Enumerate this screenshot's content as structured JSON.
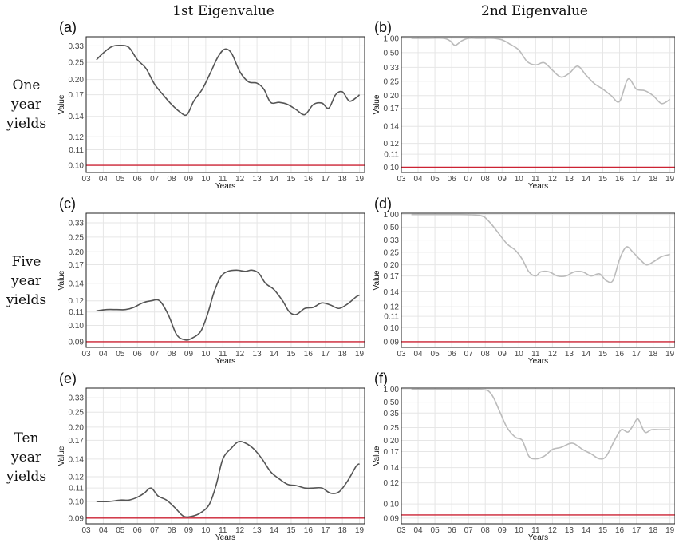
{
  "column_titles": [
    "1st Eigenvalue",
    "2nd Eigenvalue"
  ],
  "row_labels": [
    [
      "One",
      "year",
      "yields"
    ],
    [
      "Five",
      "year",
      "yields"
    ],
    [
      "Ten",
      "year",
      "yields"
    ]
  ],
  "colors": {
    "first": "#555555",
    "second": "#bbbbbb",
    "threshold": "#cc2233",
    "grid": "#e6e6e6",
    "frame": "#222222"
  },
  "chart_data": [
    {
      "id": "a",
      "type": "line",
      "panel_label": "(a)",
      "xlabel": "Years",
      "ylabel": "Value",
      "y_scale": "reciprocal",
      "xlim": [
        2003,
        2019.3
      ],
      "x_ticks": [
        "03",
        "04",
        "05",
        "06",
        "07",
        "08",
        "09",
        "10",
        "11",
        "12",
        "13",
        "14",
        "15",
        "16",
        "17",
        "18",
        "19"
      ],
      "y_ticks": [
        0.1,
        0.11,
        0.12,
        0.14,
        0.17,
        0.2,
        0.25,
        0.33
      ],
      "y_tick_labels": [
        "0.10",
        "0.11",
        "0.12",
        "0.14",
        "0.17",
        "0.20",
        "0.25",
        "0.33"
      ],
      "ylim": [
        0.096,
        0.4
      ],
      "threshold": 0.1,
      "color_key": "first",
      "x": [
        2003.6,
        2004.0,
        2004.5,
        2005.0,
        2005.5,
        2006.0,
        2006.5,
        2007.0,
        2007.5,
        2008.0,
        2008.5,
        2008.9,
        2009.3,
        2009.8,
        2010.3,
        2010.7,
        2011.1,
        2011.5,
        2012.0,
        2012.5,
        2013.0,
        2013.4,
        2013.8,
        2014.3,
        2014.8,
        2015.3,
        2015.8,
        2016.3,
        2016.8,
        2017.2,
        2017.6,
        2018.0,
        2018.4,
        2018.8,
        2019.0
      ],
      "y": [
        0.26,
        0.29,
        0.325,
        0.333,
        0.32,
        0.26,
        0.23,
        0.19,
        0.17,
        0.155,
        0.145,
        0.142,
        0.16,
        0.18,
        0.22,
        0.27,
        0.31,
        0.29,
        0.22,
        0.195,
        0.192,
        0.18,
        0.158,
        0.158,
        0.155,
        0.148,
        0.142,
        0.155,
        0.157,
        0.15,
        0.17,
        0.175,
        0.16,
        0.165,
        0.17
      ]
    },
    {
      "id": "b",
      "type": "line",
      "panel_label": "(b)",
      "xlabel": "Years",
      "ylabel": "Value",
      "y_scale": "reciprocal",
      "xlim": [
        2003,
        2019.3
      ],
      "x_ticks": [
        "03",
        "04",
        "05",
        "06",
        "07",
        "08",
        "09",
        "10",
        "11",
        "12",
        "13",
        "14",
        "15",
        "16",
        "17",
        "18",
        "19"
      ],
      "y_ticks": [
        0.1,
        0.11,
        0.12,
        0.14,
        0.17,
        0.2,
        0.25,
        0.33,
        0.5,
        1.0
      ],
      "y_tick_labels": [
        "0.10",
        "0.11",
        "0.12",
        "0.14",
        "0.17",
        "0.20",
        "0.25",
        "0.33",
        "0.50",
        "1.00"
      ],
      "ylim": [
        0.0965,
        1.12
      ],
      "threshold": 0.1,
      "color_key": "second",
      "x": [
        2003.6,
        2004.5,
        2005.5,
        2005.9,
        2006.2,
        2006.6,
        2007.0,
        2007.5,
        2008.0,
        2008.5,
        2009.0,
        2009.5,
        2010.0,
        2010.5,
        2011.0,
        2011.5,
        2012.0,
        2012.5,
        2013.0,
        2013.5,
        2014.0,
        2014.5,
        2015.0,
        2015.5,
        2016.0,
        2016.5,
        2017.0,
        2017.5,
        2018.0,
        2018.5,
        2019.0
      ],
      "y": [
        1.0,
        1.0,
        1.0,
        0.85,
        0.67,
        0.85,
        1.0,
        1.0,
        1.0,
        1.0,
        0.9,
        0.7,
        0.55,
        0.38,
        0.35,
        0.37,
        0.31,
        0.27,
        0.29,
        0.34,
        0.28,
        0.24,
        0.22,
        0.2,
        0.185,
        0.26,
        0.22,
        0.215,
        0.2,
        0.18,
        0.19
      ]
    },
    {
      "id": "c",
      "type": "line",
      "panel_label": "(c)",
      "xlabel": "Years",
      "ylabel": "Value",
      "y_scale": "reciprocal",
      "xlim": [
        2003,
        2019.3
      ],
      "x_ticks": [
        "03",
        "04",
        "05",
        "06",
        "07",
        "08",
        "09",
        "10",
        "11",
        "12",
        "13",
        "14",
        "15",
        "16",
        "17",
        "18",
        "19"
      ],
      "y_ticks": [
        0.09,
        0.1,
        0.11,
        0.12,
        0.14,
        0.17,
        0.2,
        0.25,
        0.33
      ],
      "y_tick_labels": [
        "0.09",
        "0.10",
        "0.11",
        "0.12",
        "0.14",
        "0.17",
        "0.20",
        "0.25",
        "0.33"
      ],
      "ylim": [
        0.087,
        0.42
      ],
      "threshold": 0.09,
      "color_key": "first",
      "x": [
        2003.6,
        2004.2,
        2004.8,
        2005.3,
        2005.8,
        2006.3,
        2006.8,
        2007.3,
        2007.8,
        2008.3,
        2008.8,
        2009.2,
        2009.7,
        2010.1,
        2010.5,
        2010.9,
        2011.3,
        2011.8,
        2012.3,
        2012.7,
        2013.1,
        2013.5,
        2014.0,
        2014.5,
        2014.9,
        2015.3,
        2015.8,
        2016.3,
        2016.8,
        2017.3,
        2017.8,
        2018.3,
        2018.8,
        2019.0
      ],
      "y": [
        0.111,
        0.112,
        0.112,
        0.112,
        0.114,
        0.118,
        0.12,
        0.12,
        0.108,
        0.094,
        0.091,
        0.092,
        0.096,
        0.108,
        0.13,
        0.15,
        0.158,
        0.16,
        0.158,
        0.16,
        0.155,
        0.14,
        0.132,
        0.12,
        0.11,
        0.108,
        0.113,
        0.114,
        0.118,
        0.116,
        0.113,
        0.117,
        0.124,
        0.126
      ]
    },
    {
      "id": "d",
      "type": "line",
      "panel_label": "(d)",
      "xlabel": "Years",
      "ylabel": "Value",
      "y_scale": "reciprocal",
      "xlim": [
        2003,
        2019.3
      ],
      "x_ticks": [
        "03",
        "04",
        "05",
        "06",
        "07",
        "08",
        "09",
        "10",
        "11",
        "12",
        "13",
        "14",
        "15",
        "16",
        "17",
        "18",
        "19"
      ],
      "y_ticks": [
        0.09,
        0.1,
        0.11,
        0.12,
        0.14,
        0.17,
        0.2,
        0.25,
        0.33,
        0.5,
        1.0
      ],
      "y_tick_labels": [
        "0.09",
        "0.10",
        "0.11",
        "0.12",
        "0.14",
        "0.17",
        "0.20",
        "0.25",
        "0.33",
        "0.50",
        "1.00"
      ],
      "ylim": [
        0.0865,
        1.12
      ],
      "threshold": 0.09,
      "color_key": "second",
      "x": [
        2003.6,
        2005.0,
        2006.5,
        2007.2,
        2007.7,
        2008.0,
        2008.4,
        2008.8,
        2009.3,
        2009.8,
        2010.2,
        2010.6,
        2011.0,
        2011.3,
        2011.8,
        2012.3,
        2012.8,
        2013.3,
        2013.8,
        2014.3,
        2014.8,
        2015.2,
        2015.6,
        2016.0,
        2016.4,
        2016.8,
        2017.2,
        2017.6,
        2018.0,
        2018.5,
        2019.0
      ],
      "y": [
        1.0,
        1.0,
        1.0,
        0.98,
        0.93,
        0.8,
        0.55,
        0.4,
        0.3,
        0.26,
        0.22,
        0.18,
        0.17,
        0.18,
        0.18,
        0.17,
        0.17,
        0.18,
        0.18,
        0.17,
        0.175,
        0.16,
        0.16,
        0.22,
        0.28,
        0.25,
        0.22,
        0.2,
        0.21,
        0.23,
        0.24
      ]
    },
    {
      "id": "e",
      "type": "line",
      "panel_label": "(e)",
      "xlabel": "Years",
      "ylabel": "Value",
      "y_scale": "reciprocal",
      "xlim": [
        2003,
        2019.3
      ],
      "x_ticks": [
        "03",
        "04",
        "05",
        "06",
        "07",
        "08",
        "09",
        "10",
        "11",
        "12",
        "13",
        "14",
        "15",
        "16",
        "17",
        "18",
        "19"
      ],
      "y_ticks": [
        0.09,
        0.1,
        0.11,
        0.12,
        0.14,
        0.17,
        0.2,
        0.25,
        0.33
      ],
      "y_tick_labels": [
        "0.09",
        "0.10",
        "0.11",
        "0.12",
        "0.14",
        "0.17",
        "0.20",
        "0.25",
        "0.33"
      ],
      "ylim": [
        0.087,
        0.42
      ],
      "threshold": 0.09,
      "color_key": "first",
      "x": [
        2003.6,
        2004.3,
        2005.0,
        2005.5,
        2006.0,
        2006.4,
        2006.8,
        2007.2,
        2007.7,
        2008.2,
        2008.7,
        2009.2,
        2009.7,
        2010.2,
        2010.6,
        2011.0,
        2011.5,
        2011.9,
        2012.3,
        2012.8,
        2013.3,
        2013.8,
        2014.3,
        2014.8,
        2015.3,
        2015.8,
        2016.3,
        2016.8,
        2017.3,
        2017.8,
        2018.3,
        2018.8,
        2019.0
      ],
      "y": [
        0.1,
        0.1,
        0.101,
        0.101,
        0.103,
        0.106,
        0.11,
        0.104,
        0.101,
        0.096,
        0.091,
        0.091,
        0.093,
        0.098,
        0.112,
        0.14,
        0.156,
        0.167,
        0.165,
        0.155,
        0.14,
        0.125,
        0.118,
        0.113,
        0.112,
        0.11,
        0.11,
        0.11,
        0.106,
        0.107,
        0.116,
        0.131,
        0.134
      ]
    },
    {
      "id": "f",
      "type": "line",
      "panel_label": "(f)",
      "xlabel": "Years",
      "ylabel": "Value",
      "y_scale": "reciprocal",
      "xlim": [
        2003,
        2019.3
      ],
      "x_ticks": [
        "03",
        "04",
        "05",
        "06",
        "07",
        "08",
        "09",
        "10",
        "11",
        "12",
        "13",
        "14",
        "15",
        "16",
        "17",
        "18",
        "19"
      ],
      "y_ticks": [
        0.09,
        0.1,
        0.12,
        0.14,
        0.17,
        0.2,
        0.25,
        0.35,
        0.5,
        1.0
      ],
      "y_tick_labels": [
        "0.09",
        "0.10",
        "0.12",
        "0.14",
        "0.17",
        "0.20",
        "0.25",
        "0.35",
        "0.50",
        "1.00"
      ],
      "ylim": [
        0.0865,
        1.12
      ],
      "threshold": 0.092,
      "color_key": "second",
      "x": [
        2003.6,
        2005.0,
        2006.5,
        2007.5,
        2007.9,
        2008.2,
        2008.5,
        2008.9,
        2009.3,
        2009.8,
        2010.2,
        2010.6,
        2011.0,
        2011.5,
        2012.0,
        2012.5,
        2013.0,
        2013.3,
        2013.8,
        2014.3,
        2014.8,
        2015.2,
        2015.7,
        2016.1,
        2016.5,
        2016.8,
        2017.1,
        2017.5,
        2017.9,
        2018.4,
        2019.0
      ],
      "y": [
        1.0,
        1.0,
        1.0,
        1.0,
        0.98,
        0.88,
        0.6,
        0.35,
        0.25,
        0.21,
        0.2,
        0.16,
        0.155,
        0.16,
        0.175,
        0.18,
        0.19,
        0.19,
        0.175,
        0.165,
        0.155,
        0.16,
        0.2,
        0.24,
        0.23,
        0.26,
        0.3,
        0.23,
        0.24,
        0.24,
        0.24
      ]
    }
  ]
}
